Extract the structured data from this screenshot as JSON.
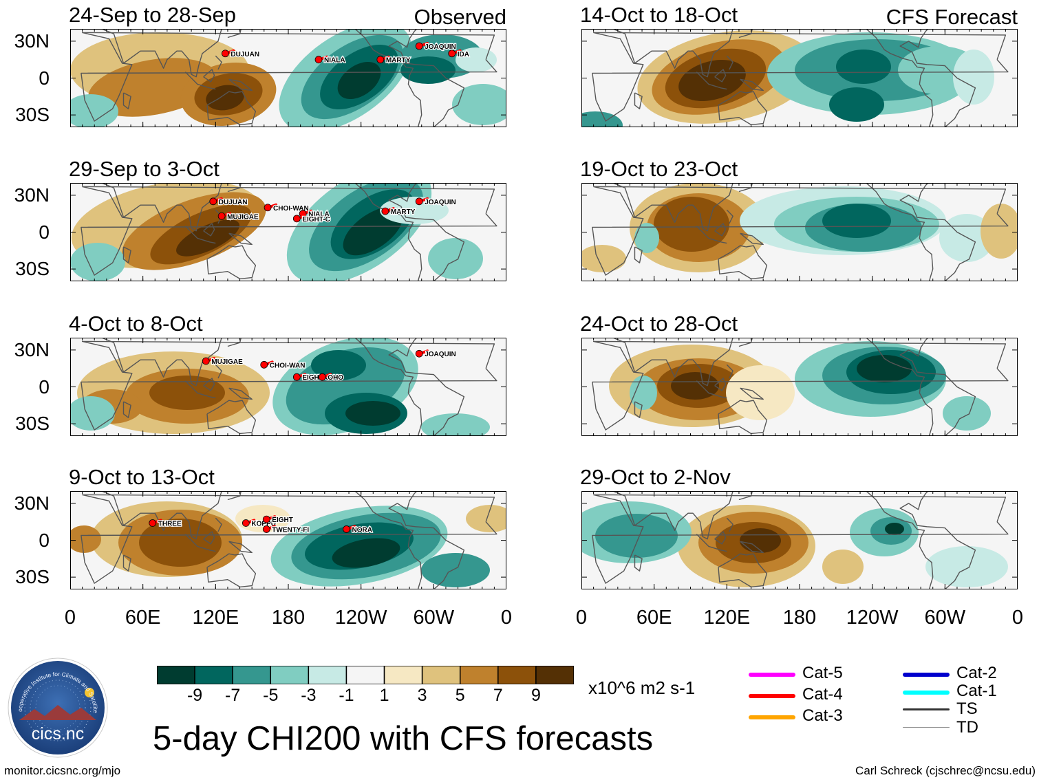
{
  "title": "5-day CHI200 with CFS forecasts",
  "units": "x10^6 m2 s-1",
  "footer": {
    "left": "monitor.cicsnc.org/mjo",
    "right": "Carl Schreck (cjschrec@ncsu.edu)"
  },
  "logo": {
    "text": "cics.nc",
    "ring_text": "Cooperative Institute for Climate and Satellites"
  },
  "panel_tags": {
    "observed": "Observed",
    "forecast": "CFS Forecast"
  },
  "lat_ticks": [
    "30N",
    "0",
    "30S"
  ],
  "lon_ticks": [
    "0",
    "60E",
    "120E",
    "180",
    "120W",
    "60W",
    "0"
  ],
  "colorbar": {
    "colors": [
      "#003c30",
      "#01665e",
      "#35978f",
      "#80cdc1",
      "#c7eae5",
      "#f5f5f5",
      "#f6e8c3",
      "#dfc27d",
      "#bf812d",
      "#8c510a",
      "#543005"
    ],
    "labels": [
      "-9",
      "-7",
      "-5",
      "-3",
      "-1",
      "1",
      "3",
      "5",
      "7",
      "9"
    ]
  },
  "legend": [
    {
      "label": "Cat-5",
      "color": "#ff00ff"
    },
    {
      "label": "Cat-4",
      "color": "#ff0000"
    },
    {
      "label": "Cat-3",
      "color": "#ffa500"
    },
    {
      "label": "Cat-2",
      "color": "#0000cd"
    },
    {
      "label": "Cat-1",
      "color": "#00ffff"
    },
    {
      "label": "TS",
      "color": "#333333"
    },
    {
      "label": "TD",
      "color": "#888888"
    }
  ],
  "panels": [
    {
      "period": "24-Sep to 28-Sep",
      "kind": "observed",
      "storms": [
        {
          "name": "DUJUAN",
          "lon": 128,
          "lat": 20
        },
        {
          "name": "NIALA",
          "lon": -155,
          "lat": 15
        },
        {
          "name": "MARTY",
          "lon": -104,
          "lat": 15
        },
        {
          "name": "JOAQUIN",
          "lon": -72,
          "lat": 26
        },
        {
          "name": "IDA",
          "lon": -45,
          "lat": 20
        }
      ]
    },
    {
      "period": "14-Oct to 18-Oct",
      "kind": "forecast",
      "storms": []
    },
    {
      "period": "29-Sep to 3-Oct",
      "kind": "observed",
      "storms": [
        {
          "name": "DUJUAN",
          "lon": 118,
          "lat": 25
        },
        {
          "name": "MUJIGAE",
          "lon": 125,
          "lat": 13
        },
        {
          "name": "CHOI-WAN",
          "lon": 163,
          "lat": 20
        },
        {
          "name": "NIALA",
          "lon": -168,
          "lat": 15
        },
        {
          "name": "EIGHT-C",
          "lon": -173,
          "lat": 11
        },
        {
          "name": "MARTY",
          "lon": -100,
          "lat": 17
        },
        {
          "name": "JOAQUIN",
          "lon": -72,
          "lat": 25
        }
      ]
    },
    {
      "period": "19-Oct to 23-Oct",
      "kind": "forecast",
      "storms": []
    },
    {
      "period": "4-Oct to 8-Oct",
      "kind": "observed",
      "storms": [
        {
          "name": "MUJIGAE",
          "lon": 112,
          "lat": 21
        },
        {
          "name": "CHOI-WAN",
          "lon": 160,
          "lat": 18
        },
        {
          "name": "EIGHT-C",
          "lon": -173,
          "lat": 8
        },
        {
          "name": "OHO",
          "lon": -152,
          "lat": 8
        },
        {
          "name": "JOAQUIN",
          "lon": -72,
          "lat": 27
        }
      ]
    },
    {
      "period": "24-Oct to 28-Oct",
      "kind": "forecast",
      "storms": []
    },
    {
      "period": "9-Oct to 13-Oct",
      "kind": "observed",
      "storms": [
        {
          "name": "THREE",
          "lon": 68,
          "lat": 14
        },
        {
          "name": "KOPPU",
          "lon": 145,
          "lat": 14
        },
        {
          "name": "EIGHT",
          "lon": 162,
          "lat": 17
        },
        {
          "name": "TWENTY-FI",
          "lon": 162,
          "lat": 9
        },
        {
          "name": "NORA",
          "lon": -132,
          "lat": 9
        }
      ]
    },
    {
      "period": "29-Oct to 2-Nov",
      "kind": "forecast",
      "storms": []
    }
  ]
}
